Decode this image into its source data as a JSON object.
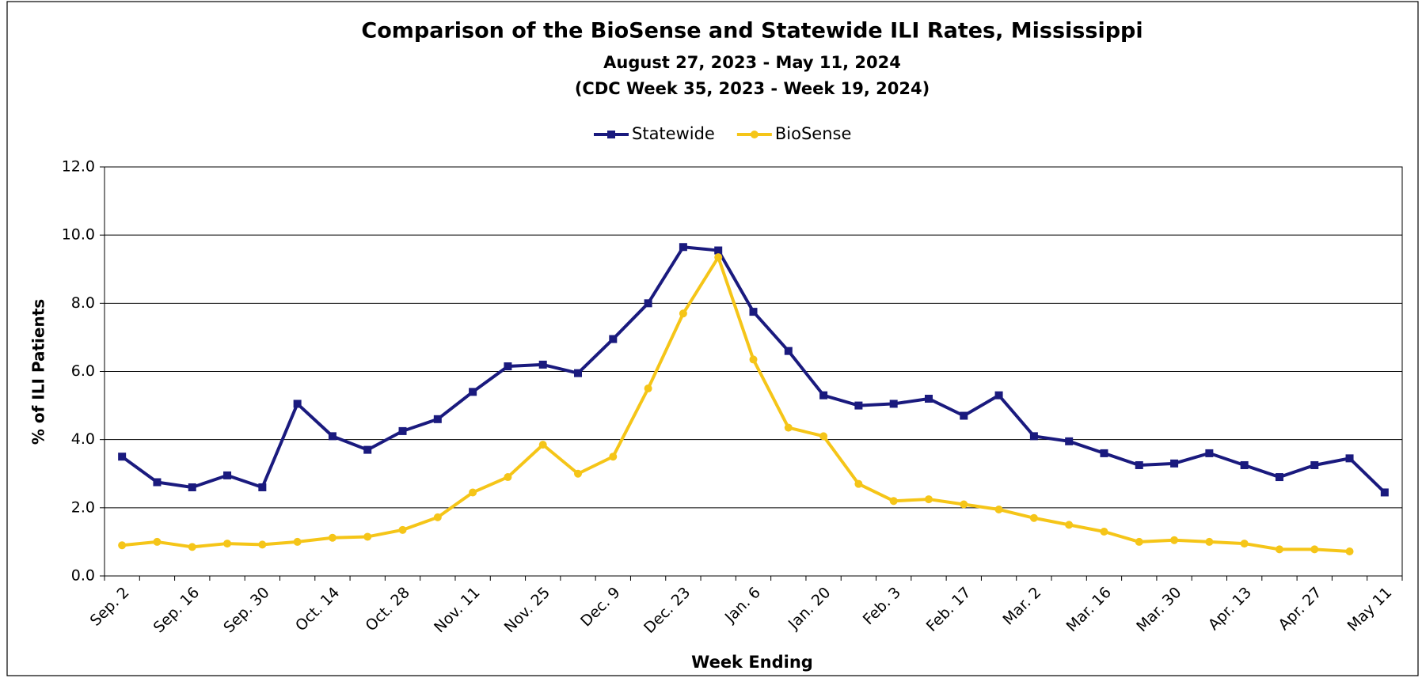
{
  "chart_data": {
    "type": "line",
    "title": "Comparison of the BioSense and Statewide ILI Rates, Mississippi",
    "subtitle": [
      "August 27, 2023 - May 11, 2024",
      "(CDC Week 35, 2023 - Week 19, 2024)"
    ],
    "x_label": "Week Ending",
    "y_label": "% of ILI Patients",
    "categories": [
      "Sep. 2",
      null,
      "Sep. 16",
      null,
      "Sep. 30",
      null,
      "Oct. 14",
      null,
      "Oct. 28",
      null,
      "Nov. 11",
      null,
      "Nov. 25",
      null,
      "Dec. 9",
      null,
      "Dec. 23",
      null,
      "Jan. 6",
      null,
      "Jan. 20",
      null,
      "Feb. 3",
      null,
      "Feb. 17",
      null,
      "Mar. 2",
      null,
      "Mar. 16",
      null,
      "Mar. 30",
      null,
      "Apr. 13",
      null,
      "Apr. 27",
      null,
      "May 11"
    ],
    "series": [
      {
        "name": "Statewide",
        "color": "#1a1a7e",
        "marker": "square",
        "values": [
          3.5,
          2.75,
          2.6,
          2.95,
          2.6,
          5.05,
          4.1,
          3.7,
          4.25,
          4.6,
          5.4,
          6.15,
          6.2,
          5.95,
          6.95,
          8.0,
          9.65,
          9.55,
          7.75,
          6.6,
          5.3,
          5.0,
          5.05,
          5.2,
          4.7,
          5.3,
          4.1,
          3.95,
          3.6,
          3.25,
          3.3,
          3.6,
          3.25,
          2.9,
          3.25,
          3.45,
          2.45
        ]
      },
      {
        "name": "BioSense",
        "color": "#f5c518",
        "marker": "circle",
        "values": [
          0.9,
          1.0,
          0.85,
          0.95,
          0.92,
          1.0,
          1.12,
          1.15,
          1.35,
          1.72,
          2.45,
          2.9,
          3.85,
          3.0,
          3.5,
          5.5,
          7.7,
          9.35,
          6.35,
          4.35,
          4.1,
          2.7,
          2.2,
          2.25,
          2.1,
          1.95,
          1.7,
          1.5,
          1.3,
          1.0,
          1.05,
          1.0,
          0.95,
          0.78,
          0.78,
          0.72,
          null
        ]
      }
    ],
    "ylim": [
      0,
      12
    ],
    "yticks": [
      {
        "value": 0,
        "label": "0.0"
      },
      {
        "value": 2,
        "label": "2.0"
      },
      {
        "value": 4,
        "label": "4.0"
      },
      {
        "value": 6,
        "label": "6.0"
      },
      {
        "value": 8,
        "label": "8.0"
      },
      {
        "value": 10,
        "label": "10.0"
      },
      {
        "value": 12,
        "label": "12.0"
      }
    ],
    "grid": true,
    "legend": "top"
  }
}
